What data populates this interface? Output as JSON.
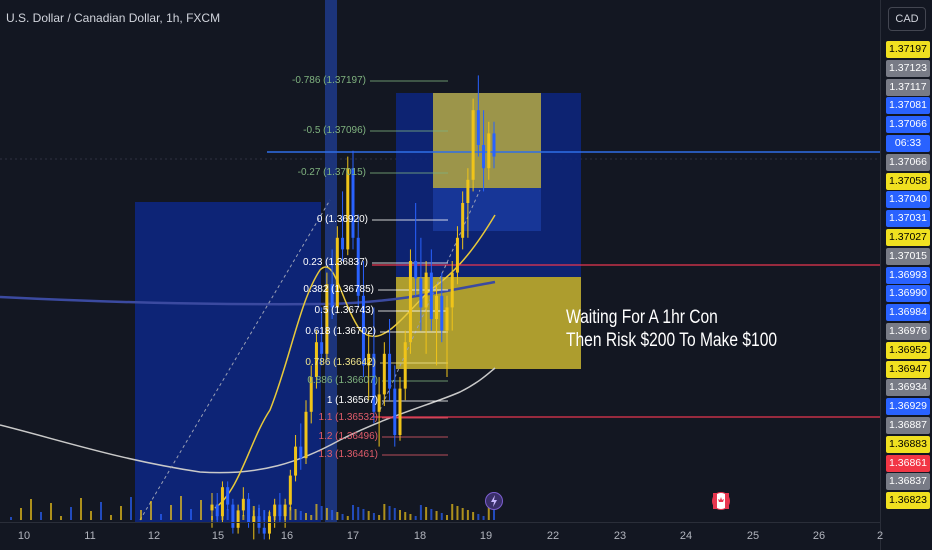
{
  "header": {
    "title": "U.S. Dollar / Canadian Dollar, 1h, FXCM",
    "currency_button": "CAD"
  },
  "annotation": {
    "line1": "Waiting For A 1hr Con",
    "line2": "Then Risk $200 To Make $100"
  },
  "price_axis": {
    "labels": [
      {
        "text": "1.37197",
        "style": "yellow"
      },
      {
        "text": "1.37123",
        "style": "gray"
      },
      {
        "text": "1.37117",
        "style": "gray"
      },
      {
        "text": "1.37081",
        "style": "blue"
      },
      {
        "text": "1.37066",
        "style": "blue"
      },
      {
        "text": "06:33",
        "style": "blue"
      },
      {
        "text": "1.37066",
        "style": "gray"
      },
      {
        "text": "1.37058",
        "style": "yellow"
      },
      {
        "text": "1.37040",
        "style": "blue"
      },
      {
        "text": "1.37031",
        "style": "blue"
      },
      {
        "text": "1.37027",
        "style": "yellow"
      },
      {
        "text": "1.37015",
        "style": "gray"
      },
      {
        "text": "1.36993",
        "style": "blue"
      },
      {
        "text": "1.36990",
        "style": "blue"
      },
      {
        "text": "1.36984",
        "style": "blue"
      },
      {
        "text": "1.36976",
        "style": "gray"
      },
      {
        "text": "1.36952",
        "style": "yellow"
      },
      {
        "text": "1.36947",
        "style": "yellow"
      },
      {
        "text": "1.36934",
        "style": "gray"
      },
      {
        "text": "1.36929",
        "style": "blue"
      },
      {
        "text": "1.36887",
        "style": "gray"
      },
      {
        "text": "1.36883",
        "style": "yellow"
      },
      {
        "text": "1.36861",
        "style": "red"
      },
      {
        "text": "1.36837",
        "style": "gray"
      },
      {
        "text": "1.36823",
        "style": "yellow"
      }
    ]
  },
  "time_axis": {
    "labels": [
      "10",
      "11",
      "12",
      "15",
      "16",
      "17",
      "18",
      "19",
      "22",
      "23",
      "24",
      "25",
      "26",
      "2"
    ]
  },
  "fib_levels": [
    {
      "text": "-0.786 (1.37197)",
      "color": "#7fb27f"
    },
    {
      "text": "-0.5 (1.37096)",
      "color": "#7fb27f"
    },
    {
      "text": "-0.27 (1.37015)",
      "color": "#7fb27f"
    },
    {
      "text": "0 (1.36920)",
      "color": "#ffffff"
    },
    {
      "text": "0.23 (1.36837)",
      "color": "#ffffff"
    },
    {
      "text": "0.382 (1.36785)",
      "color": "#ffffff"
    },
    {
      "text": "0.5 (1.36743)",
      "color": "#ffffff"
    },
    {
      "text": "0.618 (1.36702)",
      "color": "#ffffff"
    },
    {
      "text": "0.786 (1.36642)",
      "color": "#f0e58c"
    },
    {
      "text": "0.886 (1.36607)",
      "color": "#7fb27f"
    },
    {
      "text": "1 (1.36567)",
      "color": "#ffffff"
    },
    {
      "text": "1.1 (1.36532)",
      "color": "#e05c6a"
    },
    {
      "text": "1.2 (1.36496)",
      "color": "#e05c6a"
    },
    {
      "text": "1.3 (1.36461)",
      "color": "#e05c6a"
    }
  ],
  "colors": {
    "background": "#131722",
    "bull": "#f0c419",
    "bear": "#2962ff",
    "blue_zone": "#0d2680",
    "yellow_zone": "#c9b530",
    "blue_line": "#2f6fe8",
    "red_line": "#e8364f",
    "ma_yellow": "#e8c93a",
    "ma_white": "#c9c9c9",
    "ma_blue": "#3b4aa0"
  },
  "events": [
    {
      "icon": "lightning-icon"
    },
    {
      "icon": "canada-flag-icon"
    }
  ],
  "chart_data": {
    "type": "candlestick",
    "title": "U.S. Dollar / Canadian Dollar, 1h, FXCM",
    "ylim": [
      1.3643,
      1.3733
    ],
    "horizontal_lines": [
      {
        "price": 1.37066,
        "color": "blue"
      },
      {
        "price": 1.3699,
        "color": "red"
      },
      {
        "price": 1.36887,
        "color": "red"
      }
    ],
    "zones": [
      {
        "name": "blue-zone-left",
        "from": "11",
        "to": "16",
        "price_top": 1.37,
        "price_bottom": 1.3643
      },
      {
        "name": "blue-zone-target",
        "from": "17",
        "to": "20",
        "price_top": 1.37197,
        "price_bottom": 1.3699
      },
      {
        "name": "yellow-zone-entry",
        "from": "18",
        "to": "20",
        "price_top": 1.3699,
        "price_bottom": 1.3683
      },
      {
        "name": "yellow-zone-small",
        "from": "18",
        "to": "19",
        "price_top": 1.37197,
        "price_bottom": 1.37058
      }
    ],
    "candles": [
      [
        1.3645,
        1.3648,
        1.3642,
        1.3646
      ],
      [
        1.3646,
        1.3648,
        1.3643,
        1.3644
      ],
      [
        1.3644,
        1.365,
        1.3643,
        1.3649
      ],
      [
        1.3649,
        1.365,
        1.3645,
        1.3646
      ],
      [
        1.3646,
        1.3647,
        1.3641,
        1.3642
      ],
      [
        1.3642,
        1.3646,
        1.3641,
        1.3645
      ],
      [
        1.3645,
        1.3649,
        1.3644,
        1.3647
      ],
      [
        1.3647,
        1.3648,
        1.3642,
        1.3643
      ],
      [
        1.3643,
        1.3645,
        1.364,
        1.3644
      ],
      [
        1.3644,
        1.3646,
        1.3641,
        1.3642
      ],
      [
        1.3642,
        1.3645,
        1.364,
        1.3641
      ],
      [
        1.3641,
        1.3645,
        1.364,
        1.3644
      ],
      [
        1.3644,
        1.3647,
        1.3642,
        1.3646
      ],
      [
        1.3646,
        1.3648,
        1.3643,
        1.3644
      ],
      [
        1.3644,
        1.3647,
        1.3642,
        1.3646
      ],
      [
        1.3646,
        1.3652,
        1.3645,
        1.3651
      ],
      [
        1.3651,
        1.3658,
        1.365,
        1.3656
      ],
      [
        1.3656,
        1.366,
        1.3652,
        1.3654
      ],
      [
        1.3654,
        1.3664,
        1.3653,
        1.3662
      ],
      [
        1.3662,
        1.367,
        1.366,
        1.3668
      ],
      [
        1.3668,
        1.3676,
        1.3666,
        1.3674
      ],
      [
        1.3674,
        1.368,
        1.367,
        1.3672
      ],
      [
        1.3672,
        1.3686,
        1.3671,
        1.3684
      ],
      [
        1.3684,
        1.369,
        1.3678,
        1.368
      ],
      [
        1.368,
        1.3694,
        1.3679,
        1.3692
      ],
      [
        1.3692,
        1.37,
        1.3688,
        1.369
      ],
      [
        1.369,
        1.3706,
        1.3689,
        1.3704
      ],
      [
        1.3704,
        1.3707,
        1.369,
        1.3692
      ],
      [
        1.3692,
        1.3696,
        1.368,
        1.3682
      ],
      [
        1.3682,
        1.3688,
        1.3668,
        1.367
      ],
      [
        1.367,
        1.3676,
        1.3664,
        1.3672
      ],
      [
        1.3672,
        1.368,
        1.366,
        1.3662
      ],
      [
        1.3662,
        1.3668,
        1.3656,
        1.3665
      ],
      [
        1.3665,
        1.3674,
        1.3663,
        1.3672
      ],
      [
        1.3672,
        1.3678,
        1.3664,
        1.3666
      ],
      [
        1.3666,
        1.367,
        1.3656,
        1.3658
      ],
      [
        1.3658,
        1.3668,
        1.3657,
        1.3666
      ],
      [
        1.3666,
        1.3676,
        1.3664,
        1.3674
      ],
      [
        1.3674,
        1.369,
        1.3672,
        1.3688
      ],
      [
        1.3688,
        1.3698,
        1.3682,
        1.3685
      ],
      [
        1.3685,
        1.3692,
        1.3676,
        1.368
      ],
      [
        1.368,
        1.3688,
        1.3672,
        1.3686
      ],
      [
        1.3686,
        1.369,
        1.3676,
        1.3678
      ],
      [
        1.3678,
        1.3684,
        1.367,
        1.3682
      ],
      [
        1.3682,
        1.3686,
        1.3674,
        1.3676
      ],
      [
        1.3676,
        1.3682,
        1.3668,
        1.368
      ],
      [
        1.368,
        1.3688,
        1.3676,
        1.3686
      ],
      [
        1.3686,
        1.3694,
        1.3684,
        1.3692
      ],
      [
        1.3692,
        1.37,
        1.369,
        1.3698
      ],
      [
        1.3698,
        1.3704,
        1.3692,
        1.3702
      ],
      [
        1.3702,
        1.3716,
        1.37,
        1.3714
      ],
      [
        1.3714,
        1.372,
        1.3706,
        1.3708
      ],
      [
        1.3708,
        1.3714,
        1.37,
        1.3704
      ],
      [
        1.3704,
        1.3712,
        1.3702,
        1.371
      ],
      [
        1.371,
        1.3712,
        1.3704,
        1.3706
      ]
    ]
  }
}
